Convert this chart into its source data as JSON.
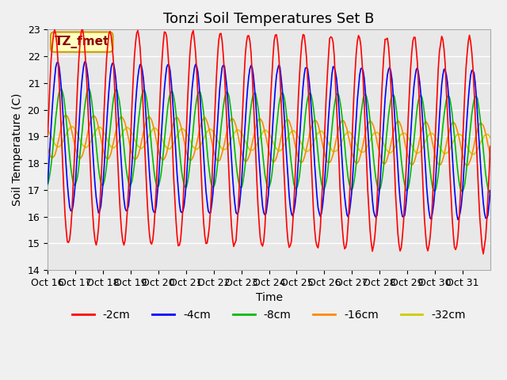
{
  "title": "Tonzi Soil Temperatures Set B",
  "xlabel": "Time",
  "ylabel": "Soil Temperature (C)",
  "ylim": [
    14.0,
    23.0
  ],
  "yticks": [
    14.0,
    15.0,
    16.0,
    17.0,
    18.0,
    19.0,
    20.0,
    21.0,
    22.0,
    23.0
  ],
  "xtick_labels": [
    "Oct 16",
    "Oct 17",
    "Oct 18",
    "Oct 19",
    "Oct 20",
    "Oct 21",
    "Oct 22",
    "Oct 23",
    "Oct 24",
    "Oct 25",
    "Oct 26",
    "Oct 27",
    "Oct 28",
    "Oct 29",
    "Oct 30",
    "Oct 31"
  ],
  "annotation": "TZ_fmet",
  "background_color": "#e8e8e8",
  "fig_bg_color": "#f0f0f0",
  "line_colors": {
    "-2cm": "#ff0000",
    "-4cm": "#0000ff",
    "-8cm": "#00bb00",
    "-16cm": "#ff8800",
    "-32cm": "#cccc00"
  },
  "legend_labels": [
    "-2cm",
    "-4cm",
    "-8cm",
    "-16cm",
    "-32cm"
  ],
  "mean_temp": 19.0,
  "amp_2cm": 4.0,
  "amp_4cm": 2.8,
  "amp_8cm": 1.8,
  "amp_16cm": 0.8,
  "amp_32cm": 0.38,
  "phase_shift_4cm": 2.5,
  "phase_shift_8cm": 5.5,
  "phase_shift_16cm": 10.0,
  "phase_shift_32cm": 15.0,
  "title_fontsize": 13,
  "axis_label_fontsize": 10,
  "tick_fontsize": 9,
  "legend_fontsize": 10
}
